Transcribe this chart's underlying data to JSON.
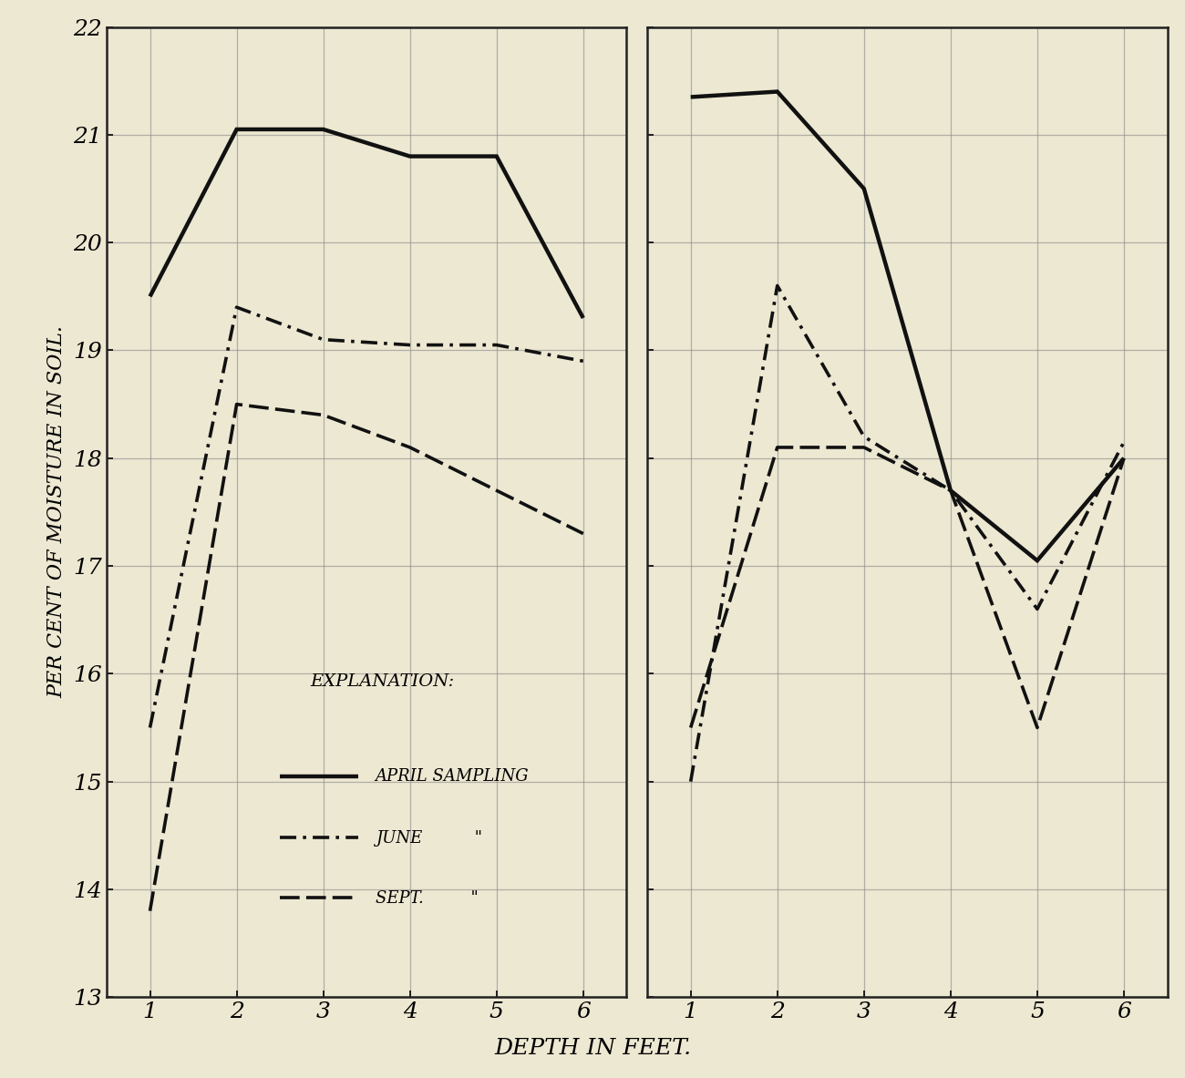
{
  "ylabel": "PER CENT OF MOISTURE IN SOIL.",
  "xlabel": "DEPTH IN FEET.",
  "ylim": [
    13,
    22
  ],
  "yticks": [
    13,
    14,
    15,
    16,
    17,
    18,
    19,
    20,
    21,
    22
  ],
  "xticks": [
    1,
    2,
    3,
    4,
    5,
    6
  ],
  "background_color": "#ede8d2",
  "grid_color": "#888888",
  "line_color": "#111111",
  "tick_fontsize": 18,
  "label_fontsize": 16,
  "panel1_april_y": [
    19.5,
    21.05,
    21.05,
    20.8,
    20.8,
    19.3
  ],
  "panel1_june_y": [
    15.5,
    19.4,
    19.1,
    19.05,
    19.05,
    18.9
  ],
  "panel1_sept_y": [
    13.8,
    18.5,
    18.4,
    18.1,
    17.7,
    17.3
  ],
  "panel2_april_y": [
    21.35,
    21.4,
    20.5,
    17.7,
    17.05,
    18.0
  ],
  "panel2_june_y": [
    15.0,
    19.6,
    18.2,
    17.7,
    16.6,
    18.15
  ],
  "panel2_sept_y": [
    15.5,
    18.1,
    18.1,
    17.7,
    15.5,
    18.0
  ],
  "legend_title": "EXPLANATION:",
  "legend_april": "APRIL SAMPLING",
  "legend_june": "JUNE          \"",
  "legend_sept": "SEPT.         \""
}
